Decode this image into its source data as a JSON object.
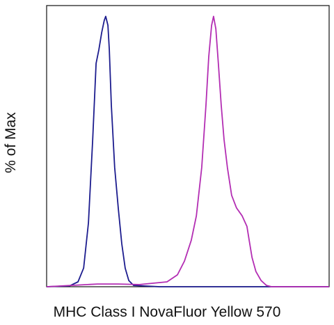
{
  "chart_data": {
    "type": "line",
    "x_label": "MHC Class I NovaFluor Yellow 570",
    "y_label": "% of Max",
    "xlim": [
      0,
      100
    ],
    "ylim": [
      0,
      104
    ],
    "series": [
      {
        "color": "#1c1c8e",
        "x": [
          0,
          8.1,
          11.1,
          13.1,
          14.8,
          16.3,
          17.5,
          18.5,
          19.5,
          20.4,
          20.9,
          21.7,
          22.2,
          22.9,
          24.1,
          25.4,
          26.6,
          27.8,
          29.1,
          30.8,
          40,
          100
        ],
        "values": [
          0,
          0.3,
          1.8,
          6.9,
          23.6,
          54.4,
          82.6,
          87.7,
          94.1,
          98.5,
          100,
          96.7,
          87.7,
          67.2,
          44.1,
          28.7,
          15.9,
          6.9,
          2.3,
          0.5,
          0,
          0
        ]
      },
      {
        "color": "#b32db3",
        "x": [
          0,
          18.0,
          25.4,
          32.8,
          42.6,
          46.3,
          48.8,
          51.2,
          53.0,
          54.9,
          56.4,
          57.4,
          58.4,
          59.1,
          59.9,
          60.8,
          61.8,
          62.8,
          64.0,
          65.5,
          67.2,
          69.2,
          70.9,
          71.7,
          72.7,
          74.1,
          75.9,
          77.8,
          79.6,
          100
        ],
        "values": [
          0,
          1.0,
          1.0,
          0.8,
          1.8,
          4.4,
          9.5,
          17.2,
          26.2,
          44.1,
          67.2,
          85.1,
          96.7,
          100,
          95.4,
          82.6,
          67.2,
          54.4,
          44.1,
          33.8,
          29.2,
          26.2,
          22.3,
          17.2,
          10.8,
          5.6,
          2.3,
          0.5,
          0,
          0
        ]
      }
    ]
  }
}
